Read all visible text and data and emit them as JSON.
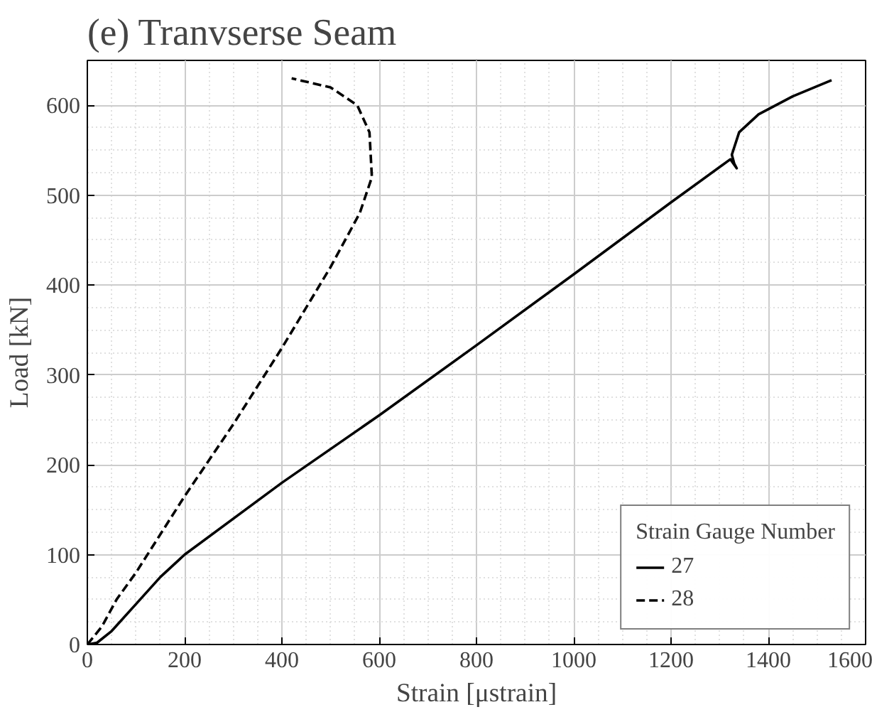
{
  "chart_data": {
    "type": "line",
    "title": "(e) Tranvserse Seam",
    "xlabel": "Strain [μstrain]",
    "ylabel": "Load [kN]",
    "legend_title": "Strain Gauge Number",
    "legend": "bottom right",
    "grid": true,
    "xlim": [
      0,
      1600
    ],
    "ylim": [
      0,
      650
    ],
    "xticks": [
      0,
      200,
      400,
      600,
      800,
      1000,
      1200,
      1400,
      1600
    ],
    "yticks": [
      0,
      100,
      200,
      300,
      400,
      500,
      600
    ],
    "series": [
      {
        "name": "27",
        "color": "#000000",
        "line_style": "solid",
        "x": [
          0,
          20,
          50,
          100,
          150,
          200,
          400,
          600,
          800,
          1000,
          1200,
          1322,
          1335,
          1330,
          1325,
          1340,
          1380,
          1450,
          1530
        ],
        "values": [
          0,
          2,
          15,
          45,
          75,
          100,
          180,
          255,
          333,
          412,
          492,
          540,
          530,
          535,
          545,
          570,
          590,
          610,
          628
        ]
      },
      {
        "name": "28",
        "color": "#000000",
        "line_style": "dashed",
        "x": [
          0,
          30,
          60,
          100,
          200,
          300,
          400,
          500,
          560,
          585,
          580,
          555,
          500,
          420
        ],
        "values": [
          0,
          20,
          50,
          80,
          165,
          245,
          330,
          420,
          480,
          520,
          570,
          600,
          620,
          630
        ]
      }
    ]
  }
}
